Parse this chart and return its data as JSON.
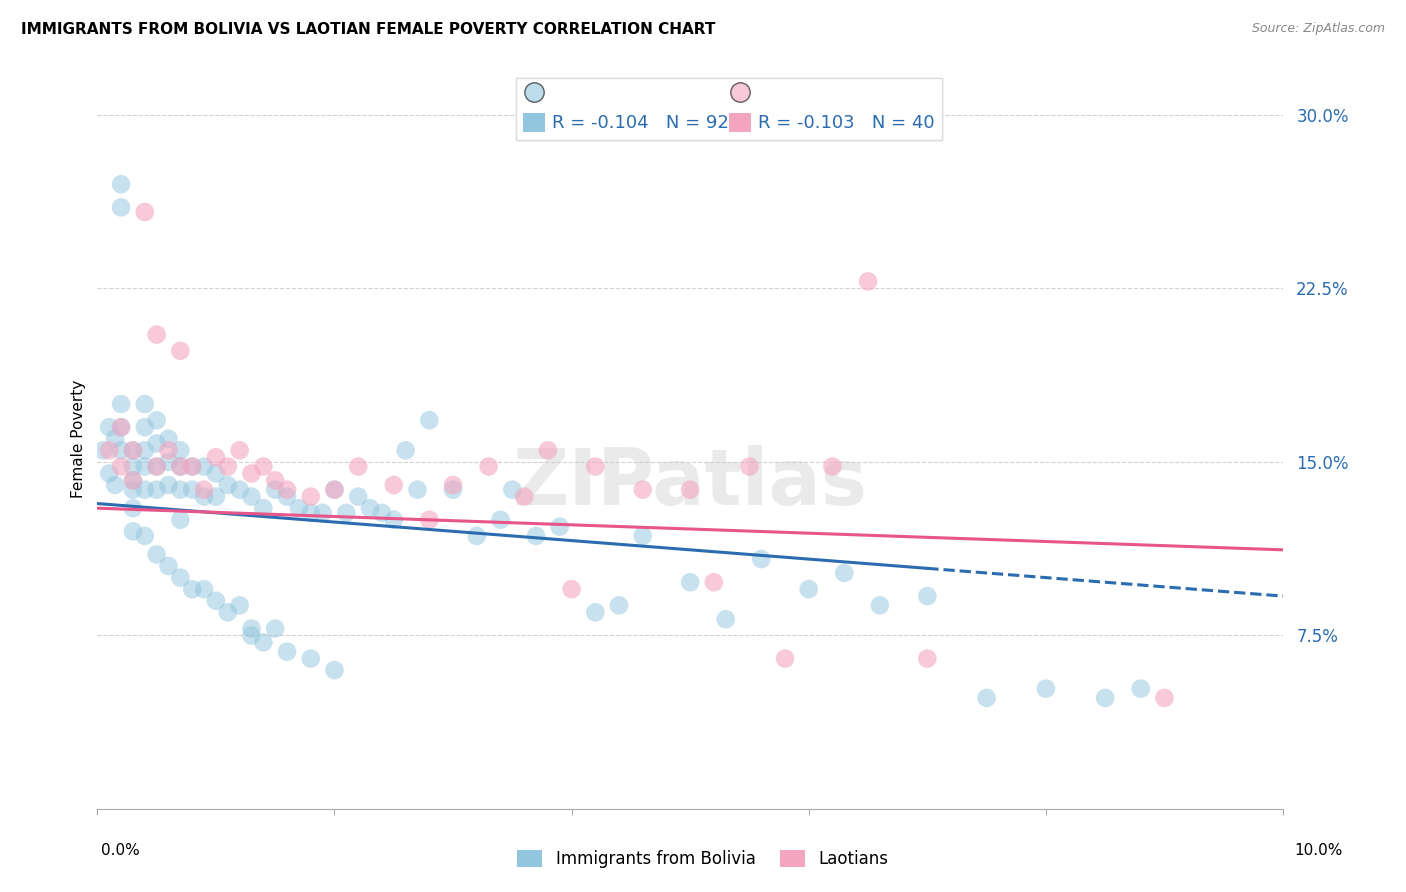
{
  "title": "IMMIGRANTS FROM BOLIVIA VS LAOTIAN FEMALE POVERTY CORRELATION CHART",
  "source": "Source: ZipAtlas.com",
  "ylabel": "Female Poverty",
  "yticks": [
    0.075,
    0.15,
    0.225,
    0.3
  ],
  "xlim": [
    0.0,
    0.1
  ],
  "ylim": [
    0.0,
    0.32
  ],
  "legend_r1": "-0.104",
  "legend_n1": "92",
  "legend_r2": "-0.103",
  "legend_n2": "40",
  "color_blue": "#92c5de",
  "color_pink": "#f4a6c0",
  "color_line_blue": "#2b6cb0",
  "color_line_pink": "#e8558a",
  "watermark": "ZIPatlas",
  "bolivia_x": [
    0.0005,
    0.001,
    0.001,
    0.0015,
    0.0015,
    0.002,
    0.002,
    0.002,
    0.002,
    0.002,
    0.003,
    0.003,
    0.003,
    0.003,
    0.003,
    0.003,
    0.004,
    0.004,
    0.004,
    0.004,
    0.004,
    0.004,
    0.005,
    0.005,
    0.005,
    0.005,
    0.005,
    0.006,
    0.006,
    0.006,
    0.006,
    0.007,
    0.007,
    0.007,
    0.007,
    0.007,
    0.008,
    0.008,
    0.008,
    0.009,
    0.009,
    0.009,
    0.01,
    0.01,
    0.01,
    0.011,
    0.011,
    0.012,
    0.012,
    0.013,
    0.013,
    0.013,
    0.014,
    0.014,
    0.015,
    0.015,
    0.016,
    0.016,
    0.017,
    0.018,
    0.018,
    0.019,
    0.02,
    0.02,
    0.021,
    0.022,
    0.023,
    0.024,
    0.025,
    0.026,
    0.027,
    0.028,
    0.03,
    0.032,
    0.034,
    0.035,
    0.037,
    0.039,
    0.042,
    0.044,
    0.046,
    0.05,
    0.053,
    0.056,
    0.06,
    0.063,
    0.066,
    0.07,
    0.075,
    0.08,
    0.085,
    0.088
  ],
  "bolivia_y": [
    0.155,
    0.165,
    0.145,
    0.16,
    0.14,
    0.27,
    0.26,
    0.175,
    0.165,
    0.155,
    0.155,
    0.148,
    0.142,
    0.138,
    0.13,
    0.12,
    0.175,
    0.165,
    0.155,
    0.148,
    0.138,
    0.118,
    0.168,
    0.158,
    0.148,
    0.138,
    0.11,
    0.16,
    0.15,
    0.14,
    0.105,
    0.155,
    0.148,
    0.138,
    0.125,
    0.1,
    0.148,
    0.138,
    0.095,
    0.148,
    0.135,
    0.095,
    0.145,
    0.135,
    0.09,
    0.14,
    0.085,
    0.138,
    0.088,
    0.135,
    0.075,
    0.078,
    0.13,
    0.072,
    0.138,
    0.078,
    0.135,
    0.068,
    0.13,
    0.128,
    0.065,
    0.128,
    0.138,
    0.06,
    0.128,
    0.135,
    0.13,
    0.128,
    0.125,
    0.155,
    0.138,
    0.168,
    0.138,
    0.118,
    0.125,
    0.138,
    0.118,
    0.122,
    0.085,
    0.088,
    0.118,
    0.098,
    0.082,
    0.108,
    0.095,
    0.102,
    0.088,
    0.092,
    0.048,
    0.052,
    0.048,
    0.052
  ],
  "laotian_x": [
    0.001,
    0.002,
    0.002,
    0.003,
    0.003,
    0.004,
    0.005,
    0.005,
    0.006,
    0.007,
    0.007,
    0.008,
    0.009,
    0.01,
    0.011,
    0.012,
    0.013,
    0.014,
    0.015,
    0.016,
    0.018,
    0.02,
    0.022,
    0.025,
    0.028,
    0.03,
    0.033,
    0.036,
    0.038,
    0.04,
    0.042,
    0.046,
    0.05,
    0.052,
    0.055,
    0.058,
    0.062,
    0.065,
    0.07,
    0.09
  ],
  "laotian_y": [
    0.155,
    0.165,
    0.148,
    0.155,
    0.142,
    0.258,
    0.205,
    0.148,
    0.155,
    0.198,
    0.148,
    0.148,
    0.138,
    0.152,
    0.148,
    0.155,
    0.145,
    0.148,
    0.142,
    0.138,
    0.135,
    0.138,
    0.148,
    0.14,
    0.125,
    0.14,
    0.148,
    0.135,
    0.155,
    0.095,
    0.148,
    0.138,
    0.138,
    0.098,
    0.148,
    0.065,
    0.148,
    0.228,
    0.065,
    0.048
  ],
  "line_blue_x_solid_end": 0.07,
  "line_blue_intercept": 0.132,
  "line_blue_slope": -0.4,
  "line_pink_intercept": 0.13,
  "line_pink_slope": -0.18
}
